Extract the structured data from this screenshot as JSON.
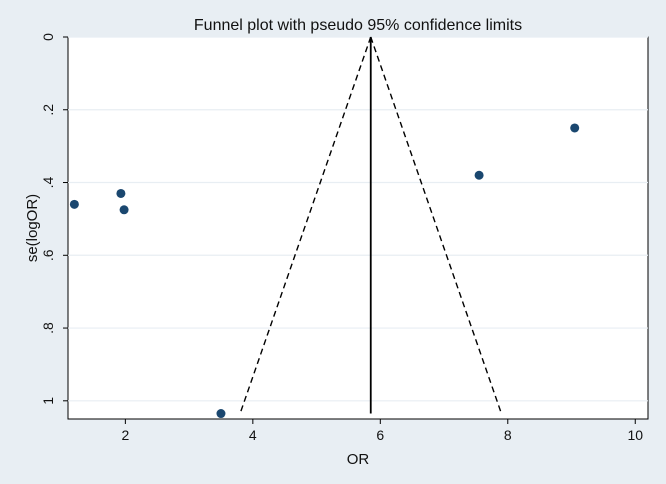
{
  "chart_data": {
    "type": "scatter",
    "title": "Funnel plot with pseudo 95% confidence limits",
    "xlabel": "OR",
    "ylabel": "se(logOR)",
    "xlim": [
      1.1,
      10.2
    ],
    "ylim": [
      0,
      1.05
    ],
    "y_reversed": true,
    "grid": "horizontal",
    "x_ticks": [
      {
        "value": 2,
        "label": "2"
      },
      {
        "value": 4,
        "label": "4"
      },
      {
        "value": 6,
        "label": "6"
      },
      {
        "value": 8,
        "label": "8"
      },
      {
        "value": 10,
        "label": "10"
      }
    ],
    "y_ticks": [
      {
        "value": 0,
        "label": "0"
      },
      {
        "value": 0.2,
        "label": ".2"
      },
      {
        "value": 0.4,
        "label": ".4"
      },
      {
        "value": 0.6,
        "label": ".6"
      },
      {
        "value": 0.8,
        "label": ".8"
      },
      {
        "value": 1,
        "label": "1"
      }
    ],
    "points": [
      {
        "x": 1.2,
        "y": 0.46
      },
      {
        "x": 1.93,
        "y": 0.43
      },
      {
        "x": 1.98,
        "y": 0.475
      },
      {
        "x": 3.5,
        "y": 1.035
      },
      {
        "x": 7.55,
        "y": 0.38
      },
      {
        "x": 9.05,
        "y": 0.25
      }
    ],
    "center_line": {
      "x": 5.85,
      "y_from": 0,
      "y_to": 1.035
    },
    "confidence_limits": {
      "apex": {
        "x": 5.85,
        "y": 0
      },
      "left_bottom": {
        "x": 3.8,
        "y": 1.035
      },
      "right_bottom": {
        "x": 7.9,
        "y": 1.035
      }
    },
    "colors": {
      "background": "#e8eef3",
      "plot_background": "#ffffff",
      "grid": "#e8eef3",
      "marker": "#1a476f",
      "line": "#000000"
    }
  }
}
